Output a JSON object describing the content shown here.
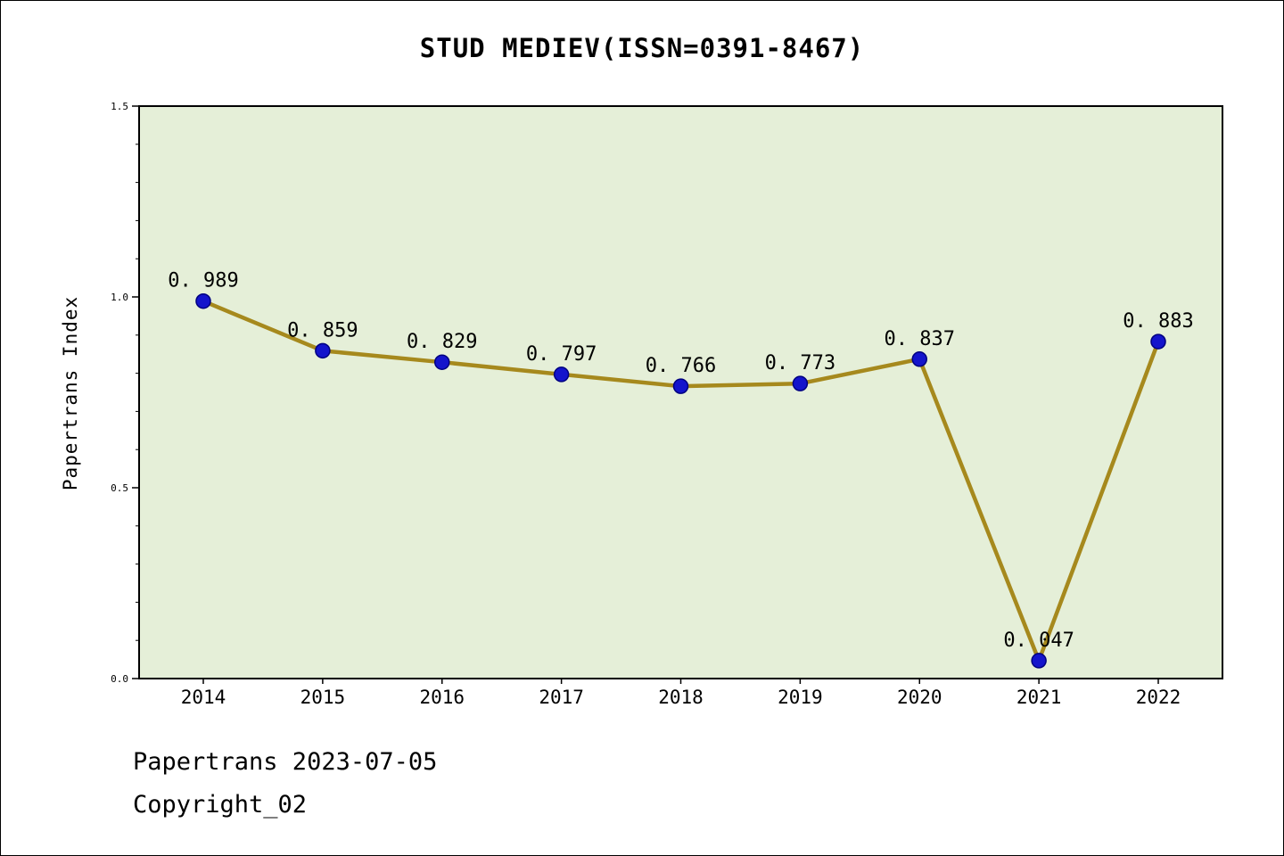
{
  "chart_data": {
    "type": "line",
    "title": "STUD MEDIEV(ISSN=0391-8467)",
    "ylabel": "Papertrans Index",
    "xlabel": "",
    "categories": [
      "2014",
      "2015",
      "2016",
      "2017",
      "2018",
      "2019",
      "2020",
      "2021",
      "2022"
    ],
    "values": [
      0.989,
      0.859,
      0.829,
      0.797,
      0.766,
      0.773,
      0.837,
      0.047,
      0.883
    ],
    "point_labels": [
      "0. 989",
      "0. 859",
      "0. 829",
      "0. 797",
      "0. 766",
      "0. 773",
      "0. 837",
      "0. 047",
      "0. 883"
    ],
    "ylim": [
      0.0,
      1.5
    ],
    "yticks": [
      0.0,
      0.5,
      1.0,
      1.5
    ],
    "ytick_labels": [
      "0.0",
      "0.5",
      "1.0",
      "1.5"
    ],
    "y_minor_step": 0.1,
    "grid": false,
    "legend": "none",
    "colors": {
      "line": "#a6891d",
      "marker_fill": "#1414cc",
      "marker_edge": "#000080",
      "plot_background": "#e5efd8",
      "axis": "#000000",
      "text": "#000000"
    }
  },
  "footer": {
    "line1": "Papertrans 2023-07-05",
    "line2": "Copyright_02"
  }
}
